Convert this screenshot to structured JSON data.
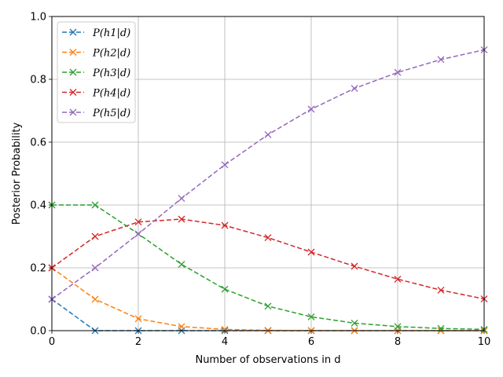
{
  "chart_data": {
    "type": "line",
    "xlabel": "Number of observations in d",
    "ylabel": "Posterior Probability",
    "xlim": [
      0,
      10
    ],
    "ylim": [
      0,
      1
    ],
    "x": [
      0,
      1,
      2,
      3,
      4,
      5,
      6,
      7,
      8,
      9,
      10
    ],
    "xticks": [
      0,
      2,
      4,
      6,
      8,
      10
    ],
    "yticks": [
      0.0,
      0.2,
      0.4,
      0.6,
      0.8,
      1.0
    ],
    "xtick_labels": [
      "0",
      "2",
      "4",
      "6",
      "8",
      "10"
    ],
    "ytick_labels": [
      "0.0",
      "0.2",
      "0.4",
      "0.6",
      "0.8",
      "1.0"
    ],
    "grid": true,
    "legend_position": "top-left",
    "marker": "x",
    "line_style": "dashed",
    "series": [
      {
        "name": "P(h1|d)",
        "color": "#1f77b4",
        "values": [
          0.1,
          0.0,
          0.0,
          0.0,
          0.0,
          0.0,
          0.0,
          0.0,
          0.0,
          0.0,
          0.0
        ]
      },
      {
        "name": "P(h2|d)",
        "color": "#ff7f0e",
        "values": [
          0.2,
          0.1,
          0.038,
          0.013,
          0.004,
          0.001,
          0.0004,
          0.0001,
          0.0,
          0.0,
          0.0
        ]
      },
      {
        "name": "P(h3|d)",
        "color": "#2ca02c",
        "values": [
          0.4,
          0.4,
          0.308,
          0.211,
          0.132,
          0.078,
          0.044,
          0.024,
          0.013,
          0.007,
          0.004
        ]
      },
      {
        "name": "P(h4|d)",
        "color": "#d62728",
        "values": [
          0.2,
          0.3,
          0.346,
          0.355,
          0.335,
          0.296,
          0.25,
          0.205,
          0.164,
          0.129,
          0.101
        ]
      },
      {
        "name": "P(h5|d)",
        "color": "#9467bd",
        "values": [
          0.1,
          0.2,
          0.308,
          0.421,
          0.528,
          0.624,
          0.705,
          0.771,
          0.822,
          0.863,
          0.894
        ]
      }
    ]
  }
}
